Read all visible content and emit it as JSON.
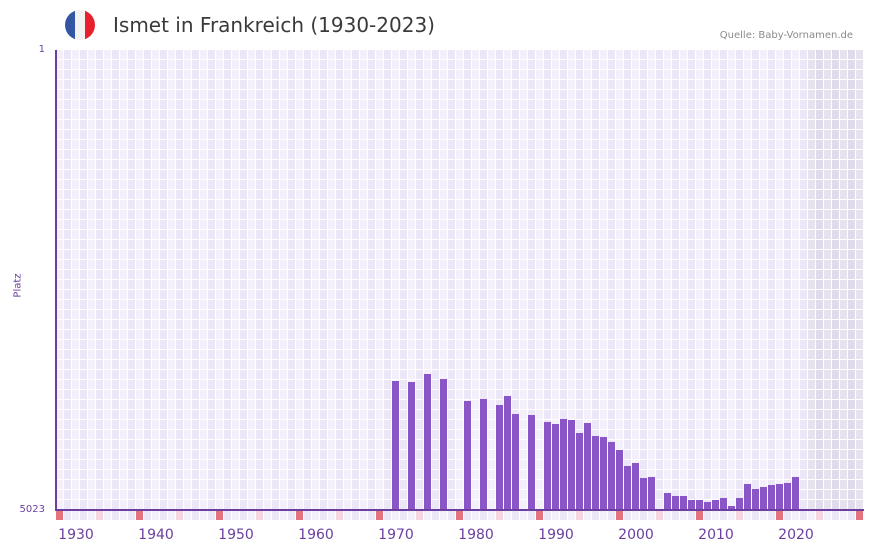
{
  "header": {
    "title": "Ismet in Frankreich (1930-2023)",
    "source": "Quelle: Baby-Vornamen.de",
    "flag_colors": [
      "#3356a4",
      "#f2f2f2",
      "#e8202e"
    ]
  },
  "colors": {
    "bar": "#8a55c6",
    "axis": "#6b3fa0",
    "grid_light": "#f3f0fb",
    "grid_dark": "#ece7f7",
    "future_light": "#e6e3ee",
    "future_dark": "#dfdaec",
    "decade_marker": "#e5737d",
    "mid_marker": "#f5d6de"
  },
  "chart_data": {
    "type": "bar",
    "title": "Ismet in Frankreich (1930-2023)",
    "xlabel": "",
    "ylabel": "Platz",
    "y_inverted": true,
    "ylim": [
      1,
      5023
    ],
    "y_ticks": [
      "1",
      "5023"
    ],
    "x_ticks": [
      "1930",
      "1940",
      "1950",
      "1960",
      "1970",
      "1980",
      "1990",
      "2000",
      "2010",
      "2020"
    ],
    "x_range": [
      1928,
      2028
    ],
    "future_shaded_from": 2022,
    "grid": true,
    "legend": "none",
    "x": [
      1970,
      1972,
      1974,
      1976,
      1979,
      1981,
      1983,
      1984,
      1985,
      1987,
      1989,
      1990,
      1991,
      1992,
      1993,
      1994,
      1995,
      1996,
      1997,
      1998,
      1999,
      2000,
      2001,
      2002,
      2004,
      2005,
      2006,
      2007,
      2008,
      2009,
      2010,
      2011,
      2012,
      2013,
      2014,
      2015,
      2016,
      2017,
      2018,
      2019,
      2020
    ],
    "values": [
      3614,
      3625,
      3538,
      3592,
      3833,
      3811,
      3877,
      3778,
      3975,
      3986,
      4062,
      4084,
      4029,
      4040,
      4182,
      4073,
      4215,
      4226,
      4281,
      4368,
      4543,
      4510,
      4674,
      4663,
      4837,
      4870,
      4870,
      4914,
      4914,
      4936,
      4914,
      4892,
      4979,
      4892,
      4739,
      4794,
      4772,
      4750,
      4739,
      4729,
      4663
    ]
  },
  "axis": {
    "ylabel": "Platz",
    "ytick_top": "1",
    "ytick_bottom": "5023"
  }
}
